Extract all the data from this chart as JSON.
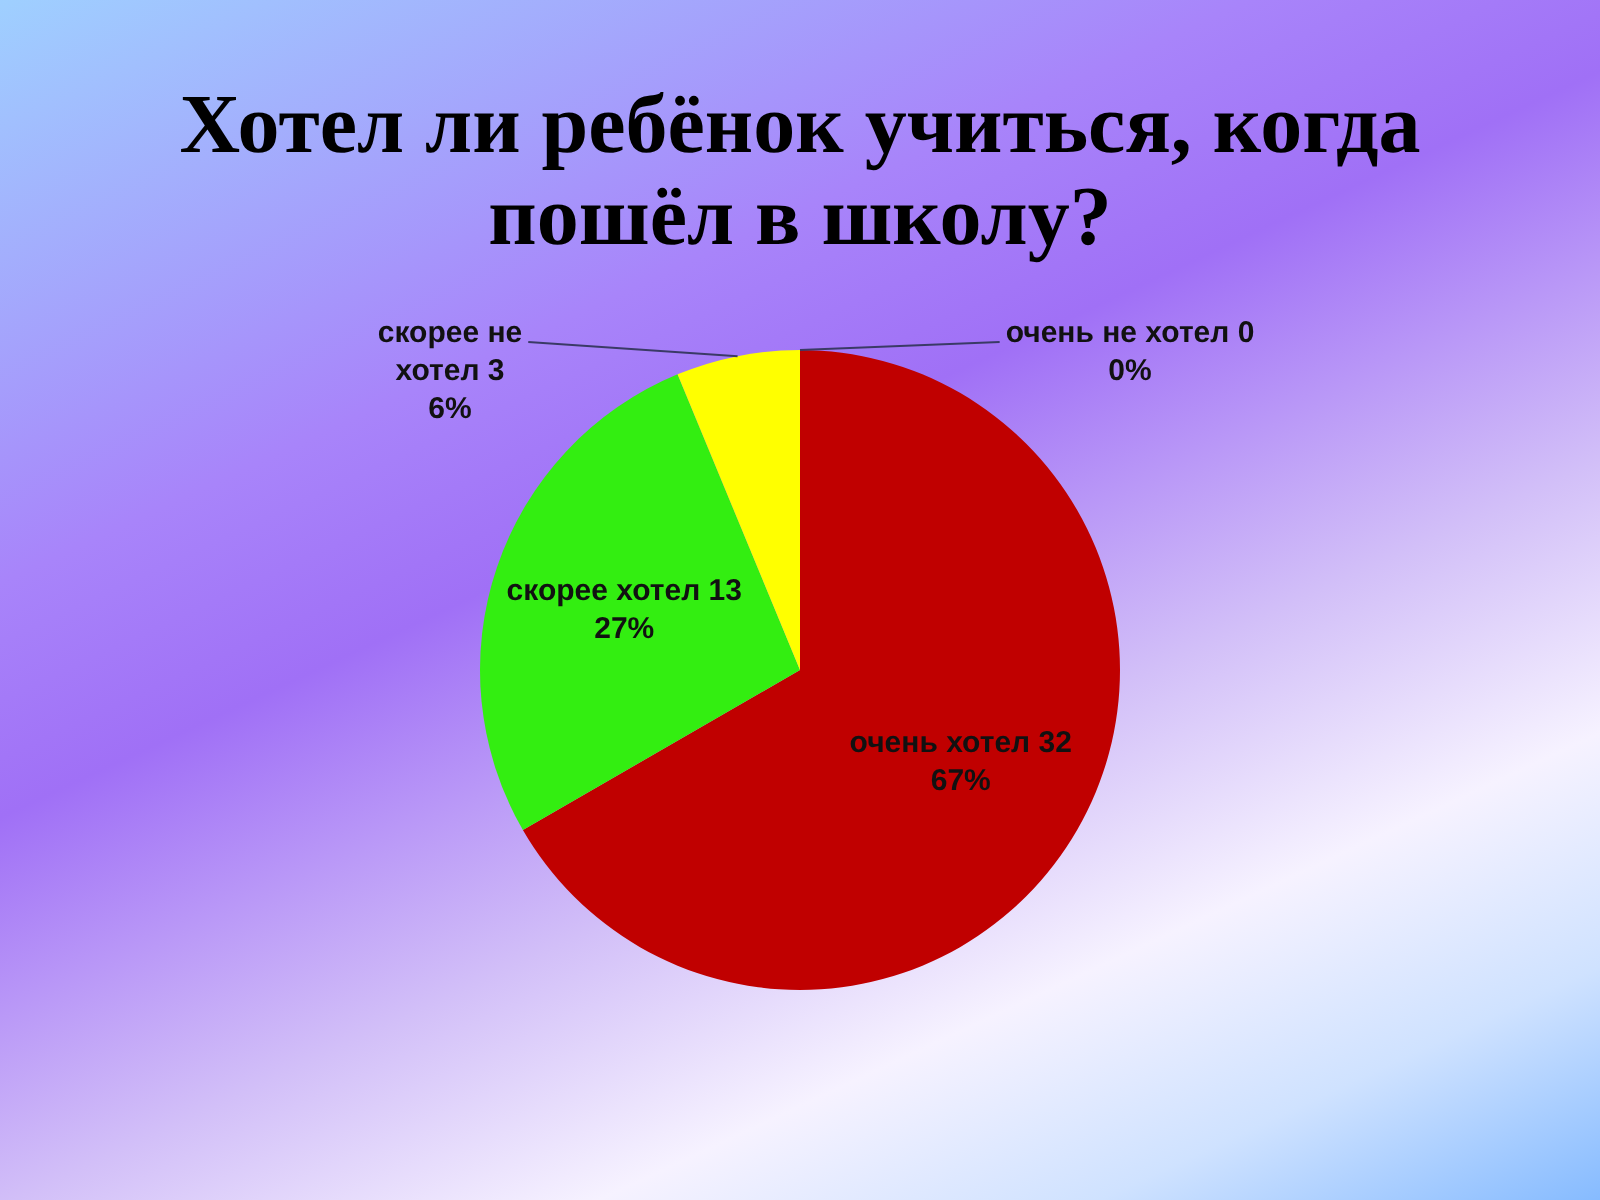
{
  "chart_data": {
    "type": "pie",
    "title": "Хотел ли ребёнок учиться, когда пошёл в школу?",
    "categories": [
      "очень хотел",
      "скорее хотел",
      "скорее не хотел",
      "очень не хотел"
    ],
    "values": [
      32,
      13,
      3,
      0
    ],
    "colors": [
      "#c00000",
      "#33ee11",
      "#ffff00",
      null
    ],
    "value_labels": [
      "32 67%",
      "13 27%",
      "3 6%",
      "0 0%"
    ],
    "legend": false
  }
}
